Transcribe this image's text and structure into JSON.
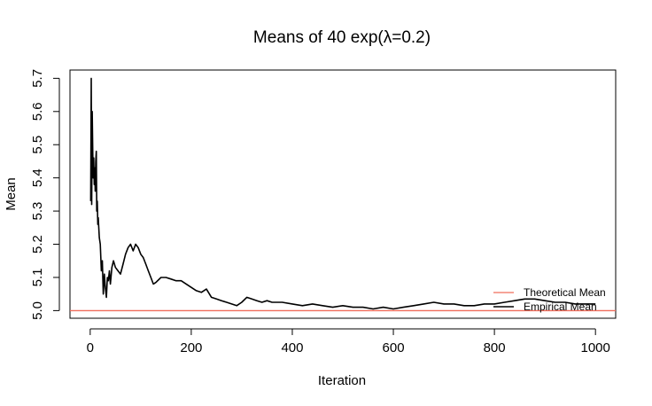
{
  "chart_data": {
    "type": "line",
    "title": "Means of 40 exp(λ=0.2)",
    "xlabel": "Iteration",
    "ylabel": "Mean",
    "xlim": [
      -40,
      1040
    ],
    "ylim": [
      4.977,
      5.725
    ],
    "x_ticks": [
      0,
      200,
      400,
      600,
      800,
      1000
    ],
    "x_tick_labels": [
      "0",
      "200",
      "400",
      "600",
      "800",
      "1000"
    ],
    "y_ticks": [
      5.0,
      5.1,
      5.2,
      5.3,
      5.4,
      5.5,
      5.6,
      5.7
    ],
    "y_tick_labels": [
      "5.0",
      "5.1",
      "5.2",
      "5.3",
      "5.4",
      "5.5",
      "5.6",
      "5.7"
    ],
    "grid": false,
    "legend_position": "bottom-right",
    "series": [
      {
        "name": "Theoretical Mean",
        "color": "#f06d5b",
        "kind": "hline",
        "value": 5.0
      },
      {
        "name": "Empirical Mean",
        "color": "#000000",
        "kind": "line",
        "x": [
          1,
          2,
          3,
          4,
          5,
          6,
          7,
          8,
          9,
          10,
          11,
          12,
          13,
          14,
          15,
          16,
          18,
          20,
          22,
          24,
          26,
          28,
          30,
          32,
          34,
          36,
          38,
          40,
          43,
          46,
          50,
          55,
          60,
          65,
          70,
          75,
          80,
          85,
          90,
          95,
          100,
          105,
          110,
          115,
          120,
          125,
          130,
          140,
          150,
          160,
          170,
          180,
          190,
          200,
          210,
          220,
          230,
          240,
          250,
          260,
          270,
          280,
          290,
          300,
          310,
          320,
          330,
          340,
          350,
          360,
          380,
          400,
          420,
          440,
          460,
          480,
          500,
          520,
          540,
          560,
          580,
          600,
          620,
          640,
          660,
          680,
          700,
          720,
          740,
          760,
          780,
          800,
          820,
          840,
          860,
          880,
          900,
          920,
          940,
          960,
          980,
          1000
        ],
        "y": [
          5.33,
          5.7,
          5.32,
          5.6,
          5.48,
          5.4,
          5.46,
          5.38,
          5.43,
          5.36,
          5.45,
          5.48,
          5.3,
          5.33,
          5.26,
          5.28,
          5.22,
          5.2,
          5.12,
          5.15,
          5.05,
          5.11,
          5.07,
          5.04,
          5.1,
          5.09,
          5.12,
          5.08,
          5.13,
          5.15,
          5.13,
          5.12,
          5.11,
          5.14,
          5.17,
          5.19,
          5.2,
          5.18,
          5.2,
          5.19,
          5.17,
          5.16,
          5.14,
          5.12,
          5.1,
          5.08,
          5.085,
          5.1,
          5.1,
          5.095,
          5.09,
          5.09,
          5.08,
          5.07,
          5.06,
          5.055,
          5.065,
          5.04,
          5.035,
          5.03,
          5.025,
          5.02,
          5.015,
          5.025,
          5.04,
          5.035,
          5.03,
          5.025,
          5.03,
          5.025,
          5.025,
          5.02,
          5.015,
          5.02,
          5.015,
          5.01,
          5.015,
          5.01,
          5.01,
          5.005,
          5.01,
          5.005,
          5.01,
          5.015,
          5.02,
          5.025,
          5.02,
          5.02,
          5.015,
          5.015,
          5.02,
          5.02,
          5.025,
          5.03,
          5.035,
          5.035,
          5.03,
          5.025,
          5.025,
          5.02,
          5.02,
          5.02
        ]
      }
    ]
  }
}
